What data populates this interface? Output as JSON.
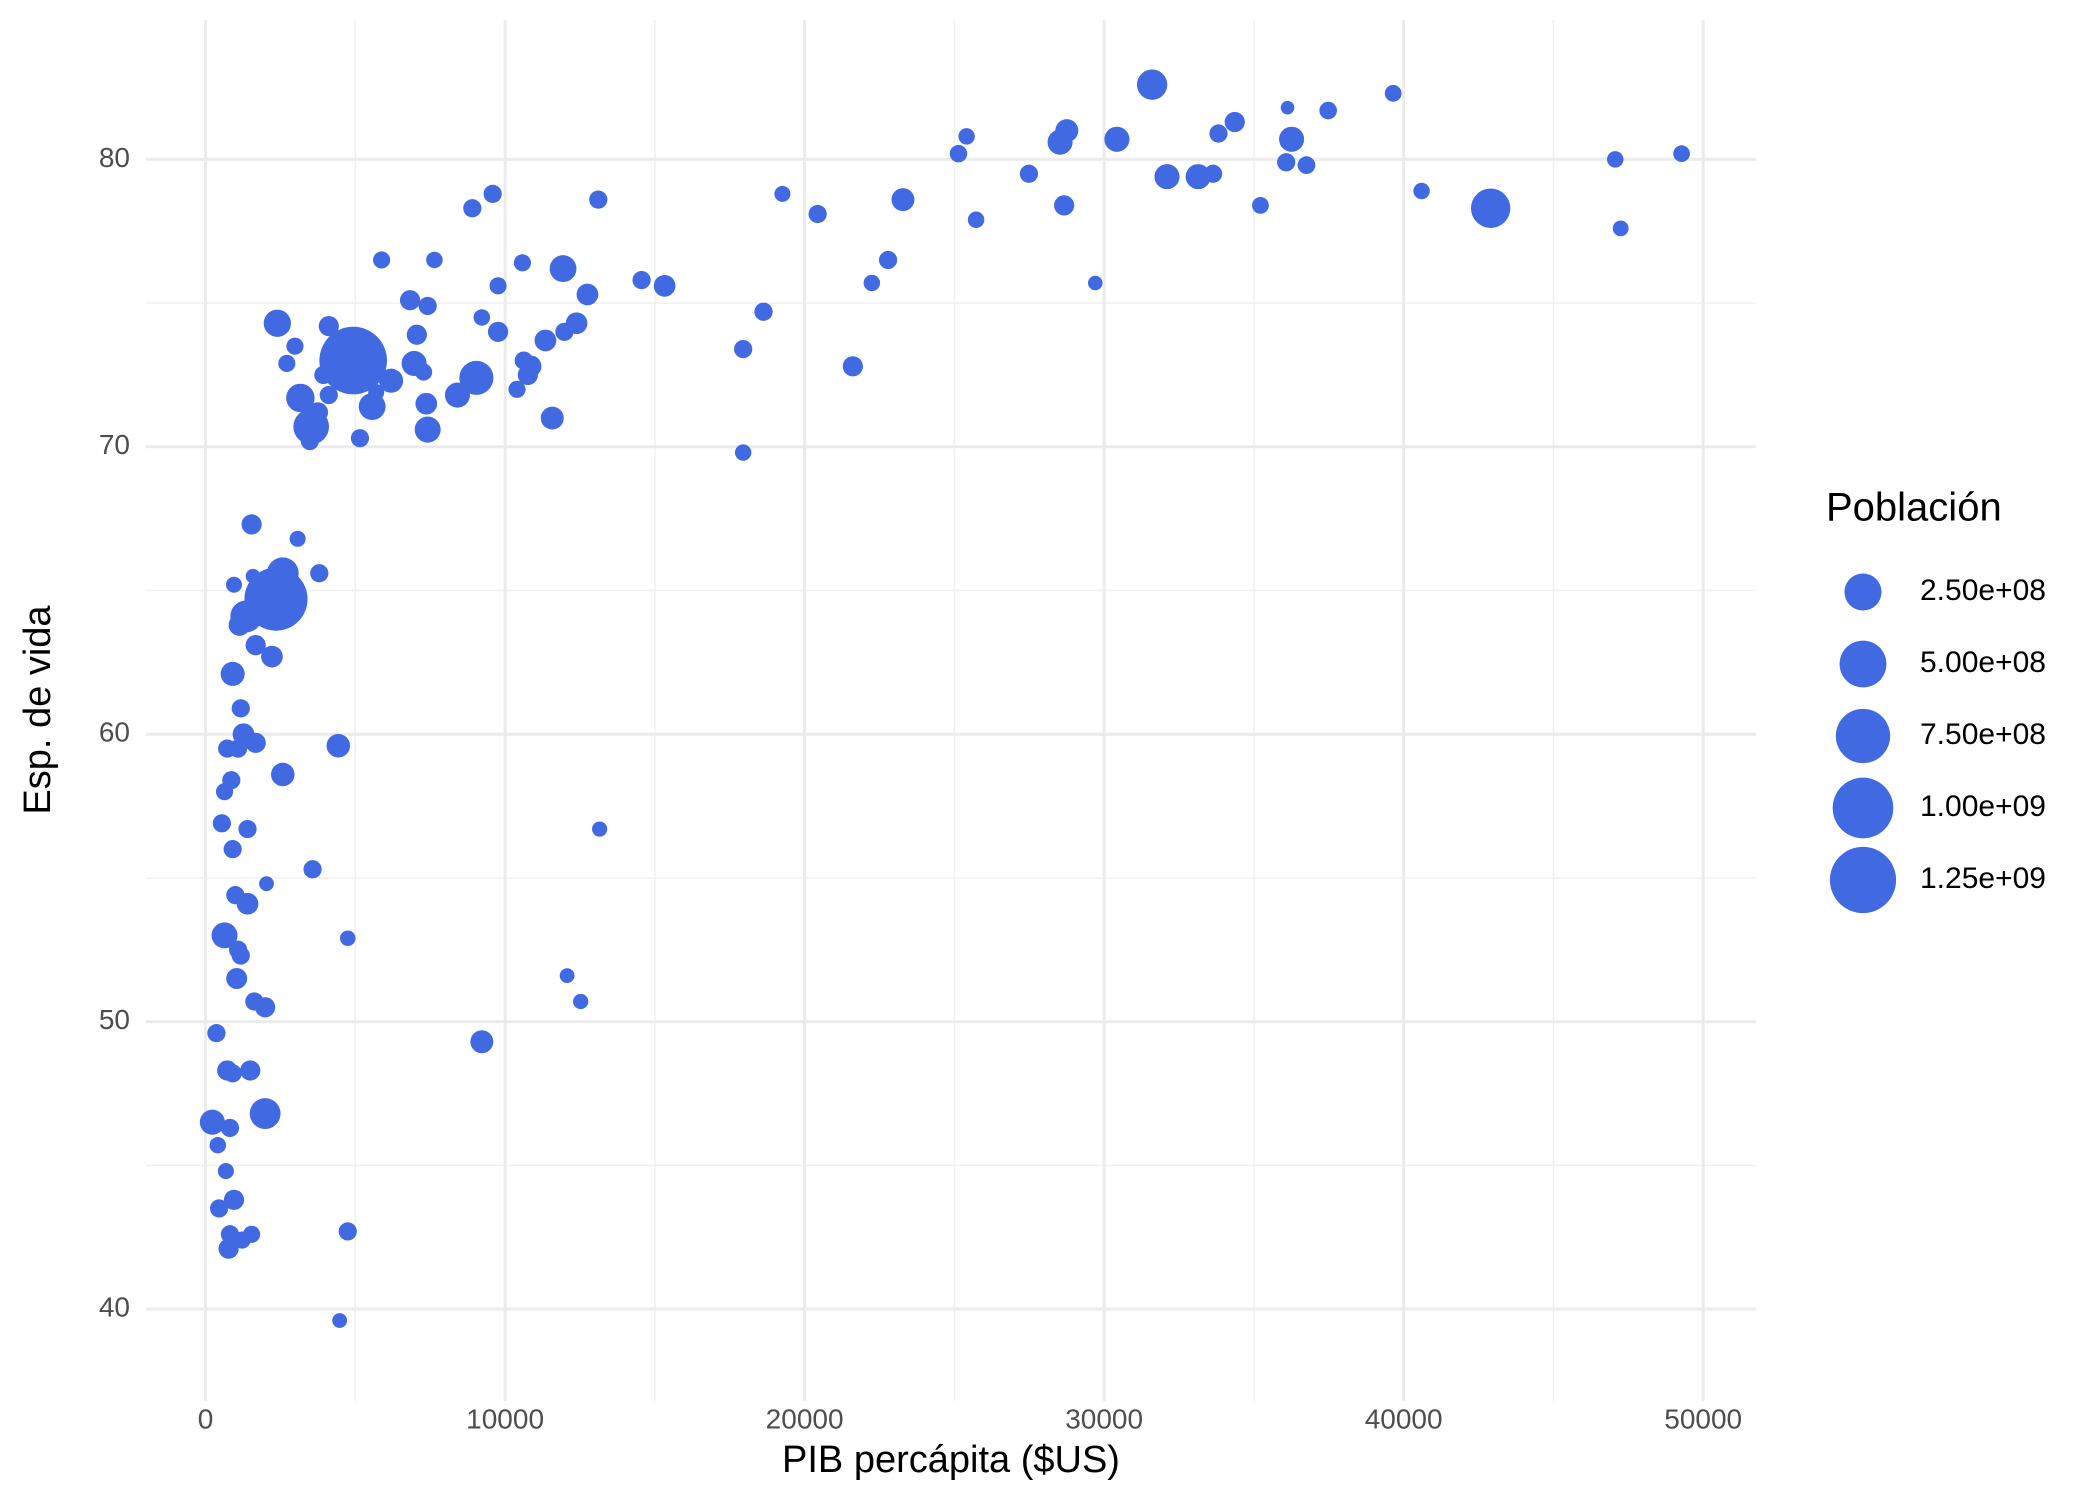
{
  "chart_data": {
    "type": "scatter",
    "x_label": "PIB percápita ($US)",
    "y_label": "Esp. de vida",
    "color": "#4169e1",
    "x": [
      31602,
      39650,
      36122,
      37480,
      34360,
      33817,
      28754,
      28528,
      30426,
      36258,
      25408,
      25137,
      49279,
      47064,
      36077,
      36755,
      27488,
      32099,
      33139,
      33636,
      40598,
      19259,
      35218,
      23283,
      28664,
      42904,
      20435,
      25725,
      47245,
      13111,
      9585,
      8906,
      22786,
      22244,
      29703,
      14557,
      15326,
      5877,
      7640,
      10579,
      11935,
      9765,
      12749,
      6827,
      7415,
      18627,
      9223,
      2396,
      4114,
      12387,
      9765,
      7053,
      11980,
      11347,
      2984,
      17948,
      4928,
      2713,
      6962,
      10624,
      10850,
      21610,
      7279,
      6194,
      3933,
      9042,
      10760,
      5696,
      8409,
      10398,
      4114,
      3165,
      5561,
      7369,
      3752,
      3526,
      7415,
      11574,
      3481,
      5154,
      17948,
      1537,
      3074,
      2577,
      3797,
      1582,
      949,
      2351,
      1356,
      1130,
      1673,
      2215,
      904,
      1175,
      1266,
      723,
      1673,
      1085,
      4431,
      2577,
      859,
      633,
      543,
      1401,
      13156,
      904,
      3572,
      2034,
      995,
      1401,
      633,
      4747,
      1085,
      1175,
      1040,
      12071,
      1628,
      1989,
      12523,
      362,
      9223,
      723,
      904,
      1492,
      1989,
      226,
      814,
      407,
      678,
      949,
      452,
      814,
      1537,
      1221,
      769,
      4747,
      4476
    ],
    "values": [
      82.6,
      82.3,
      81.8,
      81.7,
      81.3,
      80.9,
      81.0,
      80.6,
      80.7,
      80.7,
      80.8,
      80.2,
      80.2,
      80.0,
      79.9,
      79.8,
      79.5,
      79.4,
      79.4,
      79.5,
      78.9,
      78.8,
      78.4,
      78.6,
      78.4,
      78.3,
      78.1,
      77.9,
      77.6,
      78.6,
      78.8,
      78.3,
      76.5,
      75.7,
      75.7,
      75.8,
      75.6,
      76.5,
      76.5,
      76.4,
      76.2,
      75.6,
      75.3,
      75.1,
      74.9,
      74.7,
      74.5,
      74.3,
      74.2,
      74.3,
      74.0,
      73.9,
      74.0,
      73.7,
      73.5,
      73.4,
      73.0,
      72.9,
      72.9,
      73.0,
      72.8,
      72.8,
      72.6,
      72.3,
      72.5,
      72.4,
      72.5,
      71.9,
      71.8,
      72.0,
      71.8,
      71.7,
      71.4,
      71.5,
      71.2,
      70.7,
      70.6,
      71.0,
      70.2,
      70.3,
      69.8,
      67.3,
      66.8,
      65.6,
      65.6,
      65.5,
      65.2,
      64.7,
      64.1,
      63.8,
      63.1,
      62.7,
      62.1,
      60.9,
      60.0,
      59.5,
      59.7,
      59.5,
      59.6,
      58.6,
      58.4,
      58.0,
      56.9,
      56.7,
      56.7,
      56.0,
      55.3,
      54.8,
      54.4,
      54.1,
      53.0,
      52.9,
      52.5,
      52.3,
      51.5,
      51.6,
      50.7,
      50.5,
      50.7,
      49.6,
      49.3,
      48.3,
      48.2,
      48.3,
      46.8,
      46.5,
      46.3,
      45.7,
      44.8,
      43.8,
      43.5,
      42.6,
      42.6,
      42.4,
      42.1,
      42.7,
      39.6
    ],
    "sizes": [
      127000000,
      5000000,
      300000,
      7500000,
      20000000,
      10000000,
      40000000,
      60000000,
      60000000,
      60000000,
      4000000,
      7000000,
      4600000,
      4100000,
      10000000,
      8000000,
      10000000,
      60000000,
      60000000,
      10000000,
      4000000,
      3000000,
      5000000,
      40000000,
      20000000,
      301000000,
      10000000,
      4000000,
      2500000,
      10000000,
      10000000,
      10000000,
      10000000,
      4000000,
      700000,
      10000000,
      30000000,
      6000000,
      4000000,
      6000000,
      80000000,
      6000000,
      30000000,
      20000000,
      10000000,
      10000000,
      4000000,
      85000000,
      20000000,
      30000000,
      20000000,
      20000000,
      10000000,
      30000000,
      6000000,
      10000000,
      1318000000,
      6000000,
      60000000,
      10000000,
      30000000,
      20000000,
      6000000,
      50000000,
      10000000,
      190000000,
      20000000,
      3000000,
      60000000,
      6000000,
      10000000,
      100000000,
      80000000,
      30000000,
      20000000,
      220000000,
      70000000,
      40000000,
      10000000,
      10000000,
      4000000,
      20000000,
      3000000,
      150000000,
      10000000,
      700000,
      3000000,
      1110000000,
      150000000,
      30000000,
      20000000,
      30000000,
      50000000,
      10000000,
      30000000,
      10000000,
      20000000,
      10000000,
      45000000,
      45000000,
      10000000,
      6000000,
      10000000,
      10000000,
      1500000,
      10000000,
      10000000,
      1000000,
      10000000,
      30000000,
      70000000,
      2000000,
      10000000,
      10000000,
      25000000,
      1000000,
      10000000,
      20000000,
      1600000,
      10000000,
      40000000,
      20000000,
      10000000,
      20000000,
      135000000,
      60000000,
      10000000,
      4000000,
      3000000,
      20000000,
      10000000,
      10000000,
      6000000,
      6000000,
      20000000,
      10000000,
      1000000
    ],
    "xlim": [
      -1989,
      51763
    ],
    "ylim": [
      36.8,
      84.85
    ],
    "xticks": [
      0,
      10000,
      20000,
      30000,
      40000,
      50000
    ],
    "yticks": [
      40,
      50,
      60,
      70,
      80
    ],
    "grid": true,
    "size_legend": {
      "title": "Población",
      "values": [
        {
          "value": 250000000,
          "label": "2.50e+08"
        },
        {
          "value": 500000000,
          "label": "5.00e+08"
        },
        {
          "value": 750000000,
          "label": "7.50e+08"
        },
        {
          "value": 1000000000,
          "label": "1.00e+09"
        },
        {
          "value": 1250000000,
          "label": "1.25e+09"
        }
      ]
    }
  }
}
